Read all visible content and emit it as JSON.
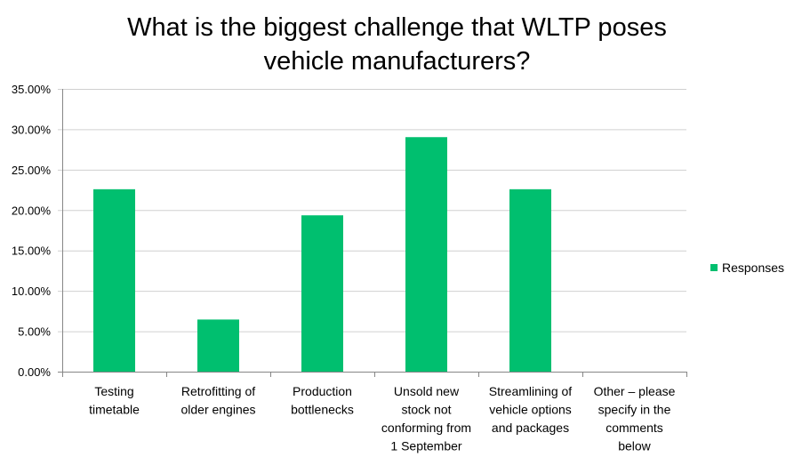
{
  "chart_data": {
    "type": "bar",
    "title_lines": [
      "What is the biggest challenge that WLTP poses",
      "vehicle manufacturers?"
    ],
    "categories": [
      [
        "Testing",
        "timetable"
      ],
      [
        "Retrofitting of",
        "older engines"
      ],
      [
        "Production",
        "bottlenecks"
      ],
      [
        "Unsold new",
        "stock not",
        "conforming from",
        "1 September"
      ],
      [
        "Streamlining of",
        "vehicle options",
        "and packages"
      ],
      [
        "Other – please",
        "specify in the",
        "comments",
        "below"
      ]
    ],
    "series": [
      {
        "name": "Responses",
        "values": [
          22.58,
          6.45,
          19.35,
          29.03,
          22.58,
          0
        ],
        "color": "#00bf6f"
      }
    ],
    "ylim": [
      0,
      35
    ],
    "yticks": [
      "0.00%",
      "5.00%",
      "10.00%",
      "15.00%",
      "20.00%",
      "25.00%",
      "30.00%",
      "35.00%"
    ],
    "ytick_values": [
      0,
      5,
      10,
      15,
      20,
      25,
      30,
      35
    ],
    "grid": true,
    "legend": "right"
  }
}
